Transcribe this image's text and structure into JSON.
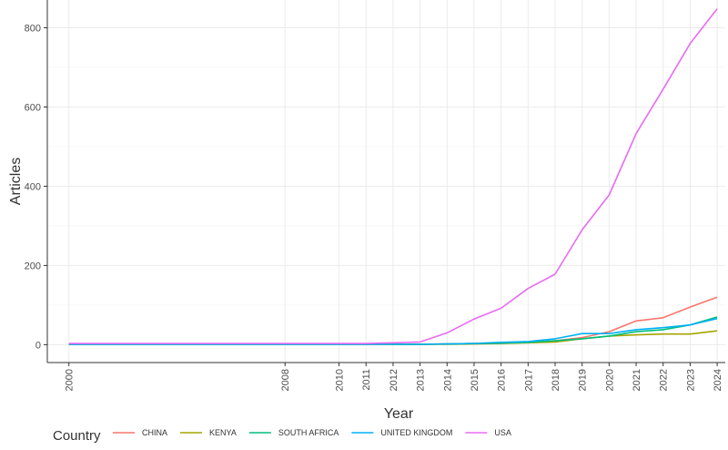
{
  "chart_data": {
    "type": "line",
    "xlabel": "Year",
    "ylabel": "Articles",
    "x": [
      2000,
      2008,
      2010,
      2011,
      2012,
      2013,
      2014,
      2015,
      2016,
      2017,
      2018,
      2019,
      2020,
      2021,
      2022,
      2023,
      2024
    ],
    "xticks": [
      "2000",
      "2008",
      "2010",
      "2011",
      "2012",
      "2013",
      "2014",
      "2015",
      "2016",
      "2017",
      "2018",
      "2019",
      "2020",
      "2021",
      "2022",
      "2023",
      "2024"
    ],
    "yticks": [
      0,
      200,
      400,
      600,
      800
    ],
    "ylim": [
      -45,
      870
    ],
    "xlim": [
      1999.2,
      2024.3
    ],
    "grid": true,
    "legend_title": "Country",
    "legend_position": "bottom",
    "series": [
      {
        "name": "CHINA",
        "color": "#F8766D",
        "values": [
          1,
          1,
          1,
          1,
          1,
          1,
          2,
          3,
          3,
          6,
          10,
          18,
          33,
          60,
          68,
          95,
          120
        ]
      },
      {
        "name": "KENYA",
        "color": "#A3A500",
        "values": [
          1,
          1,
          1,
          1,
          1,
          1,
          1,
          2,
          3,
          5,
          7,
          15,
          22,
          25,
          27,
          27,
          35
        ]
      },
      {
        "name": "SOUTH AFRICA",
        "color": "#00BF7D",
        "values": [
          1,
          1,
          1,
          1,
          1,
          1,
          2,
          3,
          4,
          6,
          10,
          15,
          22,
          33,
          38,
          50,
          70
        ]
      },
      {
        "name": "UNITED KINGDOM",
        "color": "#00B0F6",
        "values": [
          1,
          1,
          1,
          1,
          1,
          1,
          2,
          3,
          6,
          8,
          15,
          28,
          28,
          38,
          43,
          50,
          66
        ]
      },
      {
        "name": "USA",
        "color": "#E76BF3",
        "values": [
          3,
          3,
          3,
          3,
          5,
          7,
          30,
          65,
          92,
          142,
          178,
          290,
          378,
          533,
          645,
          760,
          848
        ]
      }
    ]
  }
}
